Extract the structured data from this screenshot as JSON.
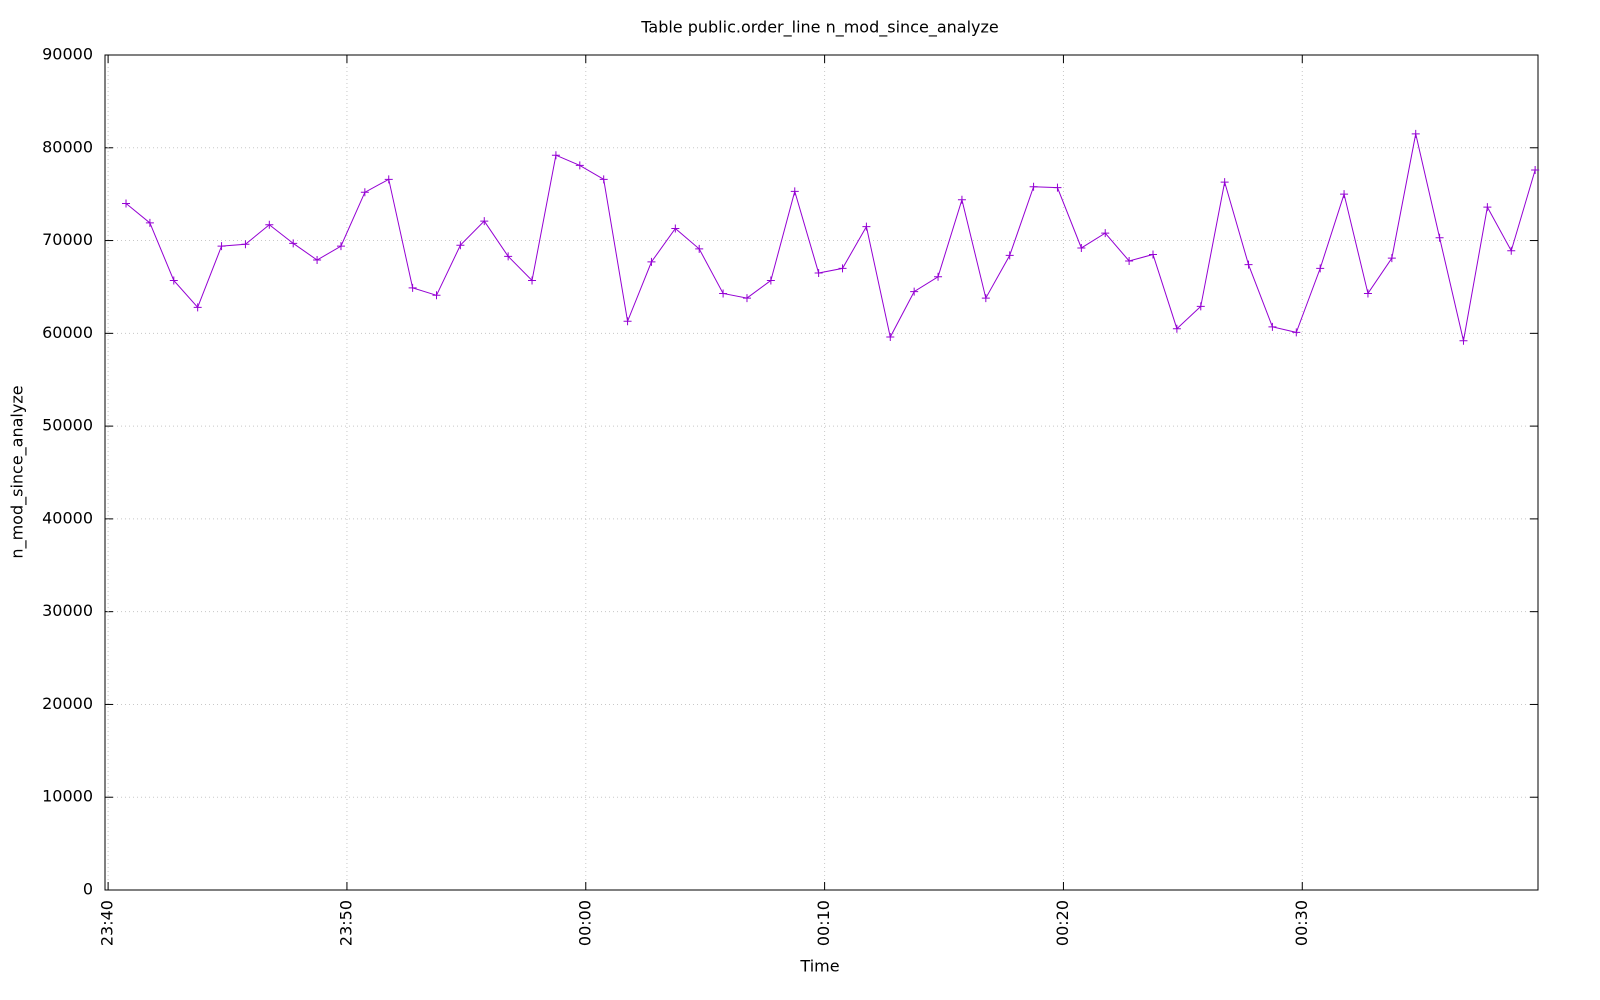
{
  "chart_data": {
    "type": "line",
    "title": "Table public.order_line n_mod_since_analyze",
    "x_label": "Time",
    "y_label": "n_mod_since_analyze",
    "x": [
      1420.75,
      1421.75,
      1422.75,
      1423.75,
      1424.75,
      1425.75,
      1426.75,
      1427.75,
      1428.75,
      1429.75,
      1430.75,
      1431.75,
      1432.75,
      1433.75,
      1434.75,
      1435.75,
      1436.75,
      1437.75,
      1438.75,
      1439.75,
      1440.75,
      1441.75,
      1442.75,
      1443.75,
      1444.75,
      1445.75,
      1446.75,
      1447.75,
      1448.75,
      1449.75,
      1450.75,
      1451.75,
      1452.75,
      1453.75,
      1454.75,
      1455.75,
      1456.75,
      1457.75,
      1458.75,
      1459.75,
      1460.75,
      1461.75,
      1462.75,
      1463.75,
      1464.75,
      1465.75,
      1466.75,
      1467.75,
      1468.75,
      1469.75,
      1470.75,
      1471.75,
      1472.75,
      1473.75,
      1474.75,
      1475.75,
      1476.75,
      1477.75,
      1478.75,
      1479.75
    ],
    "series": [
      {
        "name": "n_mod_since_analyze",
        "color": "#9400d3",
        "values": [
          74000,
          71900,
          65700,
          62800,
          69400,
          69600,
          71700,
          69700,
          67900,
          69400,
          75200,
          76600,
          64900,
          64100,
          69500,
          72100,
          68300,
          65700,
          79200,
          78100,
          76600,
          61300,
          67700,
          71300,
          69100,
          64300,
          63800,
          65700,
          75300,
          66500,
          67000,
          71500,
          59600,
          64500,
          66100,
          74400,
          63800,
          68400,
          75800,
          75700,
          69200,
          70800,
          67800,
          68500,
          60500,
          62900,
          76300,
          67400,
          60700,
          60100,
          67000,
          75000,
          64300,
          68100,
          81500,
          70300,
          59200,
          73600,
          68900,
          77600
        ]
      }
    ],
    "xlim": [
      1419.87,
      1479.87
    ],
    "xticks": [
      {
        "value": 1420,
        "label": "23:40"
      },
      {
        "value": 1430,
        "label": "23:50"
      },
      {
        "value": 1440,
        "label": "00:00"
      },
      {
        "value": 1450,
        "label": "00:10"
      },
      {
        "value": 1460,
        "label": "00:20"
      },
      {
        "value": 1470,
        "label": "00:30"
      }
    ],
    "ylim": [
      0,
      90000
    ],
    "yticks": [
      0,
      10000,
      20000,
      30000,
      40000,
      50000,
      60000,
      70000,
      80000,
      90000
    ],
    "grid": true
  }
}
